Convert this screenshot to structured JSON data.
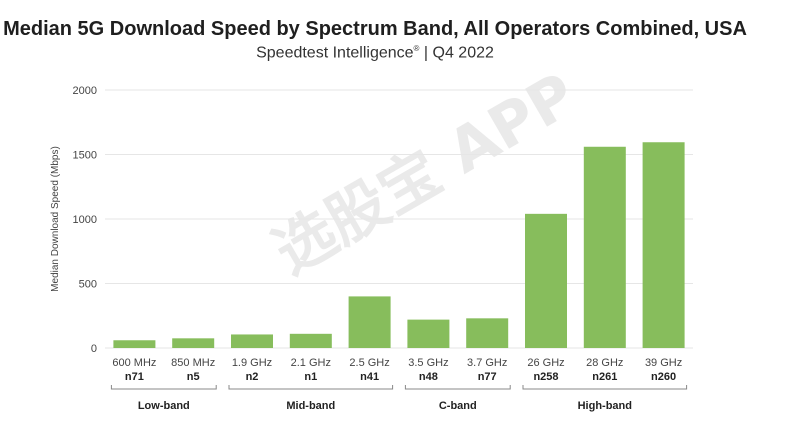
{
  "chart_data": {
    "type": "bar",
    "title": "Median 5G Download Speed by Spectrum Band, All Operators Combined, USA",
    "subtitle": "Speedtest Intelligence",
    "subtitle_mark": "®",
    "subtitle_period": "| Q4 2022",
    "ylabel": "Median Download Speed (Mbps)",
    "xlabel": "",
    "ylim": [
      0,
      2000
    ],
    "yticks": [
      0,
      500,
      1000,
      1500,
      2000
    ],
    "grid": true,
    "bar_color": "#87bd5c",
    "categories": [
      "600 MHz",
      "850 MHz",
      "1.9 GHz",
      "2.1 GHz",
      "2.5 GHz",
      "3.5 GHz",
      "3.7 GHz",
      "26 GHz",
      "28 GHz",
      "39 GHz"
    ],
    "bands": [
      "n71",
      "n5",
      "n2",
      "n1",
      "n41",
      "n48",
      "n77",
      "n258",
      "n261",
      "n260"
    ],
    "values": [
      60,
      75,
      105,
      110,
      400,
      220,
      230,
      1040,
      1560,
      1595
    ],
    "groups": [
      {
        "label": "Low-band",
        "start": 0,
        "end": 1
      },
      {
        "label": "Mid-band",
        "start": 2,
        "end": 4
      },
      {
        "label": "C-band",
        "start": 5,
        "end": 6
      },
      {
        "label": "High-band",
        "start": 7,
        "end": 9
      }
    ]
  },
  "watermark": "选股宝 APP"
}
